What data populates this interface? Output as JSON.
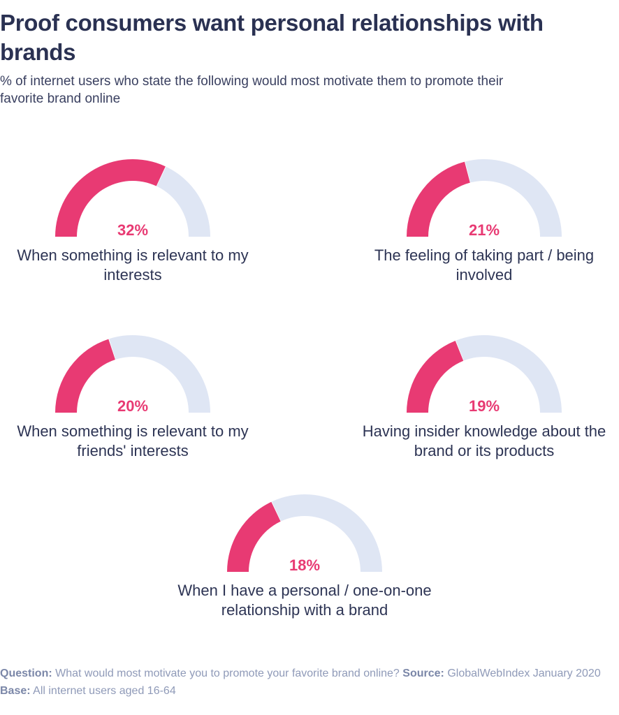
{
  "title": "Proof consumers want personal relationships with brands",
  "subtitle": "% of internet users who state the following would most motivate them to promote their favorite brand online",
  "colors": {
    "value": "#e83a73",
    "track": "#dfe6f4",
    "title": "#2a3152"
  },
  "gauge_max": 50,
  "gauges": [
    {
      "value": 32,
      "value_label": "32%",
      "label": "When something is relevant to my interests"
    },
    {
      "value": 21,
      "value_label": "21%",
      "label": "The feeling of taking part / being involved"
    },
    {
      "value": 20,
      "value_label": "20%",
      "label": "When something is relevant to my friends' interests"
    },
    {
      "value": 19,
      "value_label": "19%",
      "label": "Having insider knowledge about the brand or its products"
    },
    {
      "value": 18,
      "value_label": "18%",
      "label": "When I have a personal / one-on-one relationship with a brand"
    }
  ],
  "footer": {
    "question_label": "Question:",
    "question": "What would most motivate you to promote your favorite brand online?",
    "source_label": "Source:",
    "source": "GlobalWebIndex January 2020",
    "base_label": "Base:",
    "base": "All internet users aged 16-64"
  },
  "chart_data": {
    "type": "gauge",
    "title": "Proof consumers want personal relationships with brands",
    "subtitle": "% of internet users who state the following would most motivate them to promote their favorite brand online",
    "categories": [
      "When something is relevant to my interests",
      "The feeling of taking part / being involved",
      "When something is relevant to my friends' interests",
      "Having insider knowledge about the brand or its products",
      "When I have a personal / one-on-one relationship with a brand"
    ],
    "values": [
      32,
      21,
      20,
      19,
      18
    ],
    "unit": "%",
    "scale_max": 50,
    "legend": "none",
    "grid": false
  }
}
